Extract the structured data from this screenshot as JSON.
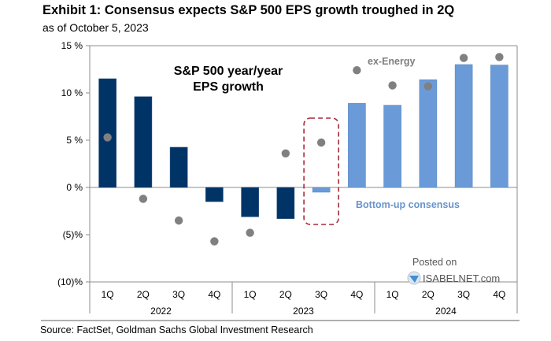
{
  "header": {
    "title": "Exhibit 1: Consensus expects S&P 500 EPS growth troughed in 2Q",
    "subtitle": "as of October 5, 2023"
  },
  "footer": {
    "source": "Source: FactSet, Goldman Sachs Global Investment Research"
  },
  "watermark": {
    "line1": "Posted on",
    "line2": "ISABELNET.com"
  },
  "chart_data": {
    "type": "bar",
    "title": "S&P 500 year/year EPS growth",
    "title_lines": [
      "S&P 500 year/year",
      "EPS growth"
    ],
    "xlabel": "",
    "ylabel": "",
    "ylim": [
      -10,
      15
    ],
    "yticks": [
      15,
      10,
      5,
      0,
      -5,
      -10
    ],
    "ytick_labels": [
      "15 %",
      "10 %",
      "5 %",
      "0 %",
      "(5)%",
      "(10)%"
    ],
    "grid": false,
    "categories": [
      "1Q",
      "2Q",
      "3Q",
      "4Q",
      "1Q",
      "2Q",
      "3Q",
      "4Q",
      "1Q",
      "2Q",
      "3Q",
      "4Q"
    ],
    "groups": [
      {
        "label": "2022",
        "count": 4
      },
      {
        "label": "2023",
        "count": 4
      },
      {
        "label": "2024",
        "count": 4
      }
    ],
    "series": [
      {
        "name": "S&P 500 year/year EPS growth",
        "kind": "bar",
        "values": [
          11.5,
          9.6,
          4.25,
          -1.5,
          -3.1,
          -3.3,
          -0.5,
          8.9,
          8.7,
          11.4,
          13.0,
          12.95
        ],
        "colors_by_type": {
          "actual": "#003366",
          "consensus": "#6a9bd8"
        },
        "point_types": [
          "actual",
          "actual",
          "actual",
          "actual",
          "actual",
          "actual",
          "consensus",
          "consensus",
          "consensus",
          "consensus",
          "consensus",
          "consensus"
        ]
      },
      {
        "name": "ex-Energy",
        "kind": "scatter",
        "color": "#808080",
        "values": [
          5.3,
          -1.2,
          -3.5,
          -5.7,
          -4.8,
          3.6,
          4.75,
          12.4,
          10.8,
          10.7,
          13.7,
          13.8
        ]
      }
    ],
    "annotations": [
      {
        "text": "ex-Energy",
        "target_series": "ex-Energy"
      },
      {
        "text": "Bottom-up consensus",
        "target_series": "consensus bars"
      },
      {
        "text": "dashed highlight",
        "category_index": 6,
        "group": "2023",
        "category": "3Q",
        "color": "#a52a3a"
      }
    ],
    "legend": "none (inline annotations)"
  }
}
